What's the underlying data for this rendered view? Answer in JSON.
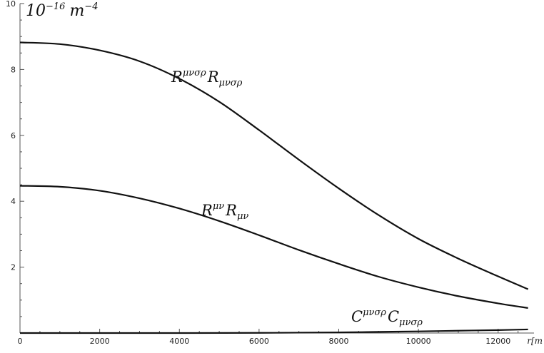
{
  "chart_data": {
    "type": "line",
    "title": "",
    "xlabel": "r[m",
    "ylabel": "10^{-16} m^{-4}",
    "xlim": [
      0,
      12900
    ],
    "ylim": [
      0,
      10
    ],
    "x_ticks": [
      0,
      2000,
      4000,
      6000,
      8000,
      10000,
      12000
    ],
    "y_ticks": [
      2,
      4,
      6,
      8,
      10
    ],
    "unit_label": {
      "base": "10",
      "base_exp": "−16",
      "unit": "m",
      "unit_exp": "−4"
    },
    "series": [
      {
        "name": "R^{μνσρ} R_{μνσρ}",
        "label_parts": {
          "main1": "R",
          "sup": "μνσρ",
          "main2": "R",
          "sub": "μνσρ"
        },
        "x": [
          0,
          1000,
          2000,
          3000,
          4000,
          5000,
          6000,
          7000,
          8000,
          9000,
          10000,
          11000,
          12000,
          12750
        ],
        "values": [
          8.82,
          8.77,
          8.58,
          8.25,
          7.72,
          7.02,
          6.16,
          5.26,
          4.39,
          3.58,
          2.86,
          2.26,
          1.72,
          1.33
        ]
      },
      {
        "name": "R^{μν} R_{μν}",
        "label_parts": {
          "main1": "R",
          "sup": "μν",
          "main2": "R",
          "sub": "μν"
        },
        "x": [
          0,
          1000,
          2000,
          3000,
          4000,
          5000,
          6000,
          7000,
          8000,
          9000,
          10000,
          11000,
          12000,
          12750
        ],
        "values": [
          4.47,
          4.44,
          4.32,
          4.09,
          3.78,
          3.4,
          2.97,
          2.52,
          2.1,
          1.71,
          1.39,
          1.12,
          0.9,
          0.76
        ]
      },
      {
        "name": "C^{μνσρ} C_{μνσρ}",
        "label_parts": {
          "main1": "C",
          "sup": "μνσρ",
          "main2": "C",
          "sub": "μνσρ"
        },
        "x": [
          0,
          2000,
          4000,
          6000,
          8000,
          9000,
          10000,
          11000,
          12000,
          12750
        ],
        "values": [
          0.0,
          0.0,
          0.0,
          0.005,
          0.02,
          0.035,
          0.05,
          0.07,
          0.09,
          0.11
        ]
      }
    ],
    "grid": false,
    "legend": "inline labels"
  }
}
